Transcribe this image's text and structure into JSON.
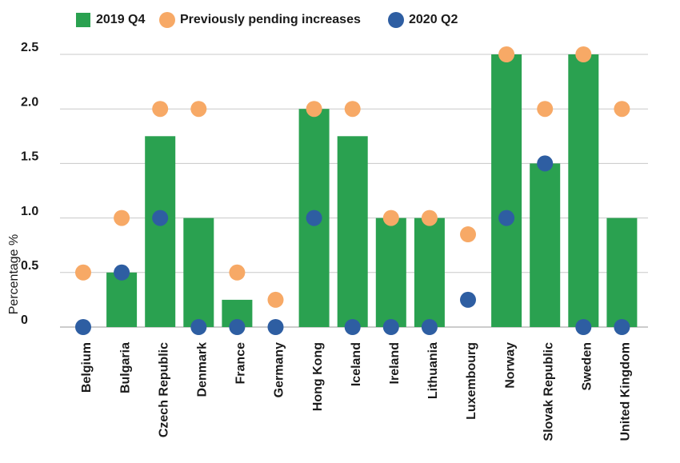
{
  "chart_data": {
    "type": "bar",
    "title": "",
    "xlabel": "",
    "ylabel": "Percentage %",
    "ylim": [
      0,
      2.5
    ],
    "yticks": [
      0,
      0.5,
      1.0,
      1.5,
      2.0,
      2.5
    ],
    "ytick_labels": [
      "0",
      "0.5",
      "1.0",
      "1.5",
      "2.0",
      "2.5"
    ],
    "grid": "horizontal",
    "legend_position": "top",
    "categories": [
      "Belgium",
      "Bulgaria",
      "Czech Republic",
      "Denmark",
      "France",
      "Germany",
      "Hong Kong",
      "Iceland",
      "Ireland",
      "Lithuania",
      "Luxembourg",
      "Norway",
      "Slovak Republic",
      "Sweden",
      "United Kingdom"
    ],
    "series": [
      {
        "name": "2019 Q4",
        "kind": "bar",
        "color": "#2aa150",
        "values": [
          0,
          0.5,
          1.75,
          1.0,
          0.25,
          0,
          2.0,
          1.75,
          1.0,
          1.0,
          0,
          2.5,
          1.5,
          2.5,
          1.0
        ]
      },
      {
        "name": "Previously pending increases",
        "kind": "dot",
        "color": "#f7a966",
        "values": [
          0.5,
          1.0,
          2.0,
          2.0,
          0.5,
          0.25,
          2.0,
          2.0,
          1.0,
          1.0,
          0.85,
          2.5,
          2.0,
          2.5,
          2.0
        ]
      },
      {
        "name": "2020 Q2",
        "kind": "dot",
        "color": "#2e5ea2",
        "values": [
          0,
          0.5,
          1.0,
          0,
          0,
          0,
          1.0,
          0,
          0,
          0,
          0.25,
          1.0,
          1.5,
          0,
          0
        ]
      }
    ]
  }
}
